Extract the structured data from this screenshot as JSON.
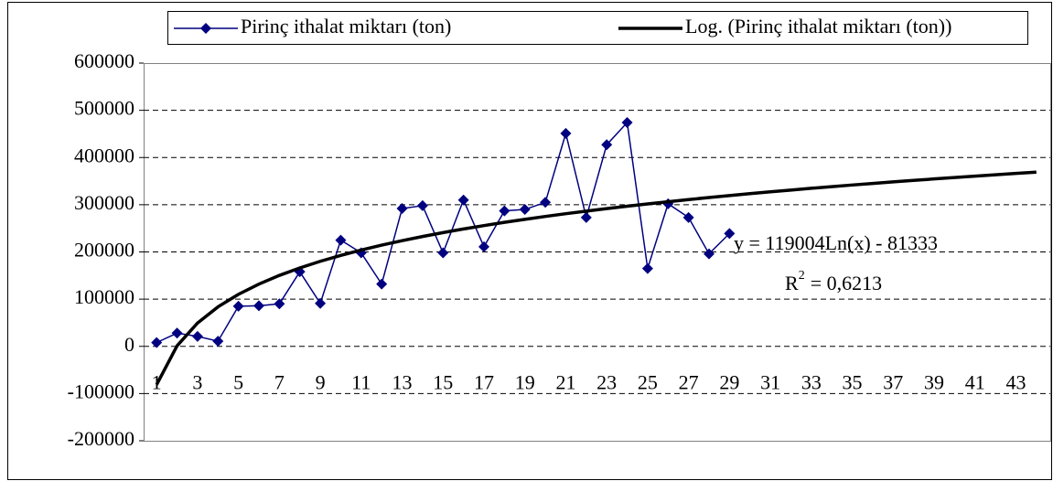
{
  "chart_data": {
    "type": "line",
    "categories": [
      1,
      null,
      3,
      null,
      5,
      null,
      7,
      null,
      9,
      null,
      11,
      null,
      13,
      null,
      15,
      null,
      17,
      null,
      19,
      null,
      21,
      null,
      23,
      null,
      25,
      null,
      27,
      null,
      29,
      null,
      31,
      null,
      33,
      null,
      35,
      null,
      37,
      null,
      39,
      null,
      41,
      null,
      43,
      null
    ],
    "series": [
      {
        "name": "Pirinç ithalat miktarı (ton)",
        "color": "#000080",
        "marker": "diamond",
        "values": [
          8000,
          28000,
          21000,
          11000,
          85000,
          86000,
          90000,
          158000,
          91000,
          225000,
          198000,
          132000,
          292000,
          298000,
          198000,
          310000,
          211000,
          287000,
          290000,
          305000,
          451000,
          273000,
          427000,
          474000,
          165000,
          302000,
          273000,
          196000,
          239000,
          null,
          null,
          null,
          null,
          null,
          null,
          null,
          null,
          null,
          null,
          null,
          null,
          null,
          null,
          null
        ]
      },
      {
        "name": "Log. (Pirinç ithalat miktarı (ton))",
        "color": "#000000",
        "marker": "none",
        "values": [
          -81333,
          1150,
          49405,
          83643,
          110194,
          131900,
          150239,
          166126,
          180145,
          192688,
          204029,
          214383,
          223903,
          232733,
          240944,
          248620,
          255832,
          262639,
          269065,
          275170,
          280977,
          286510,
          291806,
          296875,
          301731,
          306396,
          310882,
          315214,
          319391,
          323425,
          327329,
          331101,
          334766,
          338324,
          341764,
          345120,
          348381,
          351558,
          354652,
          357663,
          360602,
          363470,
          366267,
          369004
        ]
      }
    ],
    "ylim": [
      -200000,
      600000
    ],
    "yticks": [
      -200000,
      -100000,
      0,
      100000,
      200000,
      300000,
      400000,
      500000,
      600000
    ],
    "x_axis_crosses": -100000,
    "grid": true,
    "legend": "top",
    "annotations": {
      "equation": "y = 119004Ln(x) - 81333",
      "r_squared": {
        "base": "R",
        "sup": "2",
        "value": "= 0,6213"
      }
    }
  }
}
